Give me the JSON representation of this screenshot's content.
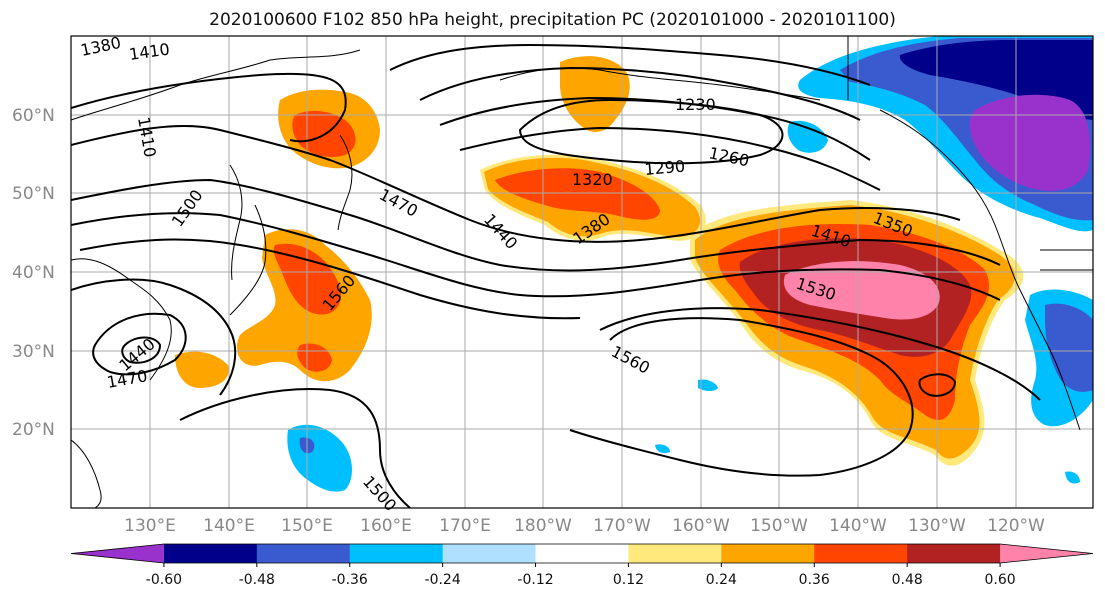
{
  "title": "2020100600 F102 850 hPa height, precipitation PC (2020101000 - 2020101100)",
  "latitude_labels": [
    "60°N",
    "50°N",
    "40°N",
    "30°N",
    "20°N"
  ],
  "longitude_labels": [
    "130°E",
    "140°E",
    "150°E",
    "160°E",
    "170°E",
    "180°W",
    "170°W",
    "160°W",
    "150°W",
    "140°W",
    "130°W",
    "120°W"
  ],
  "colorbar": {
    "colors": [
      "#9932cc",
      "#00008b",
      "#3a5bd0",
      "#00bfff",
      "#b0e0ff",
      "#ffffff",
      "#ffe87c",
      "#ffa500",
      "#ff4500",
      "#b22222",
      "#ff82ab"
    ],
    "tick_labels": [
      "-0.60",
      "-0.48",
      "-0.36",
      "-0.24",
      "-0.12",
      "0.12",
      "0.24",
      "0.36",
      "0.48",
      "0.60"
    ]
  },
  "contour_labels": [
    "1380",
    "1410",
    "1410",
    "1500",
    "1470",
    "1440",
    "1380",
    "1320",
    "1290",
    "1230",
    "1260",
    "1350",
    "1410",
    "1530",
    "1560",
    "1560",
    "1500",
    "1440",
    "1470"
  ]
}
